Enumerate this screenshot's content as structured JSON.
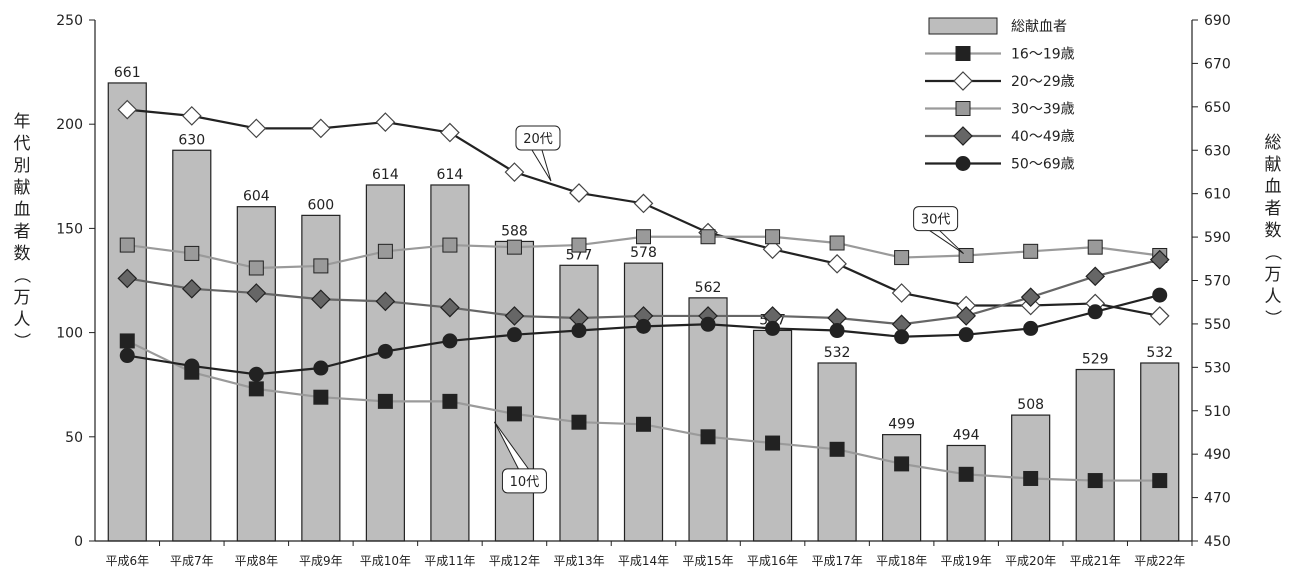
{
  "chart_data": {
    "type": "bar+line",
    "categories": [
      "平成6年",
      "平成7年",
      "平成8年",
      "平成9年",
      "平成10年",
      "平成11年",
      "平成12年",
      "平成13年",
      "平成14年",
      "平成15年",
      "平成16年",
      "平成17年",
      "平成18年",
      "平成19年",
      "平成20年",
      "平成21年",
      "平成22年"
    ],
    "bar_series": {
      "name": "総献血者",
      "axis": "right",
      "values": [
        661,
        630,
        604,
        600,
        614,
        614,
        588,
        577,
        578,
        562,
        547,
        532,
        499,
        494,
        508,
        529,
        532
      ],
      "color": "#bdbdbd"
    },
    "line_series": [
      {
        "name": "16〜19歳",
        "marker": "square",
        "color": "#9a9a9a",
        "marker_color": "#222222",
        "values": [
          96,
          81,
          73,
          69,
          67,
          67,
          61,
          57,
          56,
          50,
          47,
          44,
          37,
          32,
          30,
          29,
          29
        ]
      },
      {
        "name": "20〜29歳",
        "marker": "diamond-open",
        "color": "#222222",
        "marker_color": "#ffffff",
        "values": [
          207,
          204,
          198,
          198,
          201,
          196,
          177,
          167,
          162,
          148,
          140,
          133,
          119,
          113,
          113,
          114,
          108
        ]
      },
      {
        "name": "30〜39歳",
        "marker": "square",
        "color": "#9a9a9a",
        "marker_color": "#9a9a9a",
        "values": [
          142,
          138,
          131,
          132,
          139,
          142,
          141,
          142,
          146,
          146,
          146,
          143,
          136,
          137,
          139,
          141,
          137
        ]
      },
      {
        "name": "40〜49歳",
        "marker": "diamond",
        "color": "#666666",
        "marker_color": "#666666",
        "values": [
          126,
          121,
          119,
          116,
          115,
          112,
          108,
          107,
          108,
          108,
          108,
          107,
          104,
          108,
          117,
          127,
          135
        ]
      },
      {
        "name": "50〜69歳",
        "marker": "circle",
        "color": "#222222",
        "marker_color": "#222222",
        "values": [
          89,
          84,
          80,
          83,
          91,
          96,
          99,
          101,
          103,
          104,
          102,
          101,
          98,
          99,
          102,
          110,
          118
        ]
      }
    ],
    "left_axis": {
      "title": "年代別献血者数（万人）",
      "ylim": [
        0,
        250
      ],
      "ticks": [
        0,
        50,
        100,
        150,
        200,
        250
      ]
    },
    "right_axis": {
      "title": "総献血者数（万人）",
      "ylim": [
        450,
        690
      ],
      "ticks": [
        450,
        470,
        490,
        510,
        530,
        550,
        570,
        590,
        610,
        630,
        650,
        670,
        690
      ]
    },
    "legend_placement": "top-right",
    "annotations": [
      {
        "text": "20代",
        "series_index": 1,
        "category_index": 7
      },
      {
        "text": "30代",
        "series_index": 2,
        "category_index": 12
      },
      {
        "text": "10代",
        "series_index": 0,
        "category_index": 6
      }
    ],
    "grid": false
  }
}
